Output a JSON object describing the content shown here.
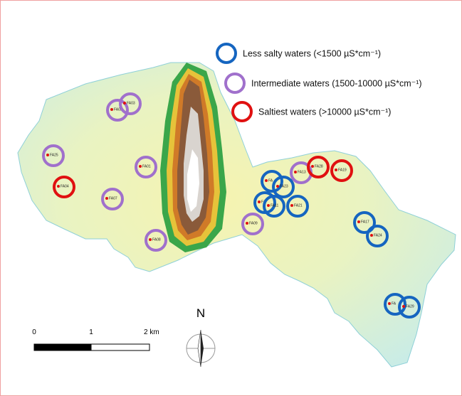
{
  "legend": [
    {
      "kind": "less",
      "color": "#1565c0",
      "label": "Less salty waters (<1500 µS*cm⁻¹)"
    },
    {
      "kind": "intermediate",
      "color": "#a070cc",
      "label": "Intermediate waters (1500-10000 µS*cm⁻¹)"
    },
    {
      "kind": "saltiest",
      "color": "#e01010",
      "label": "Saltiest waters (>10000 µS*cm⁻¹)"
    }
  ],
  "sites": [
    {
      "label": "FA02",
      "kind": "intermediate"
    },
    {
      "label": "FA03",
      "kind": "intermediate"
    },
    {
      "label": "FA25",
      "kind": "intermediate"
    },
    {
      "label": "FA01",
      "kind": "intermediate"
    },
    {
      "label": "FA07",
      "kind": "intermediate"
    },
    {
      "label": "FA08",
      "kind": "intermediate"
    },
    {
      "label": "FA13",
      "kind": "intermediate"
    },
    {
      "label": "FA09",
      "kind": "intermediate"
    },
    {
      "label": "FA04",
      "kind": "saltiest"
    },
    {
      "label": "FA28",
      "kind": "saltiest"
    },
    {
      "label": "FA19",
      "kind": "saltiest"
    },
    {
      "label": "FA",
      "kind": "less"
    },
    {
      "label": "FA23",
      "kind": "less"
    },
    {
      "label": "FA",
      "kind": "less"
    },
    {
      "label": "FA11",
      "kind": "less"
    },
    {
      "label": "FA21",
      "kind": "less"
    },
    {
      "label": "FA17",
      "kind": "less"
    },
    {
      "label": "FA24",
      "kind": "less"
    },
    {
      "label": "FA",
      "kind": "less"
    },
    {
      "label": "FA29",
      "kind": "less"
    }
  ],
  "scale_bar": {
    "labels": [
      "0",
      "1",
      "2 km"
    ]
  },
  "north_label": "N"
}
